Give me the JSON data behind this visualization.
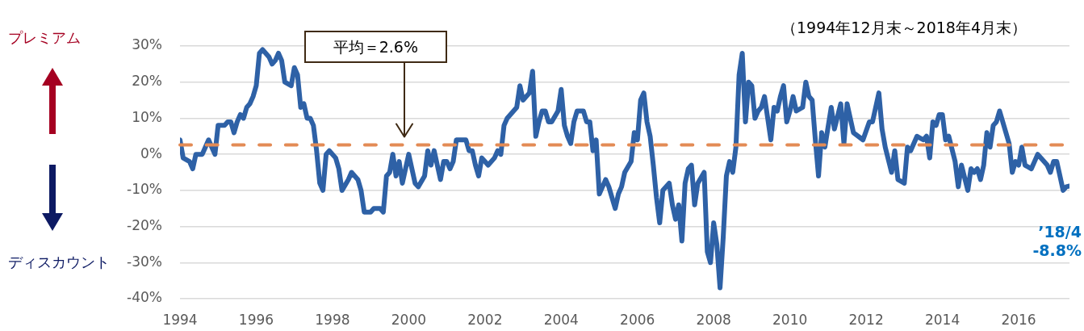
{
  "chart_data": {
    "type": "line",
    "subtitle": "（1994年12月末～2018年4月末）",
    "x": [
      "1994-12",
      "1995-01",
      "1995-03",
      "1995-04",
      "1995-05",
      "1995-07",
      "1995-08",
      "1995-09",
      "1995-10",
      "1995-11",
      "1995-12",
      "1996-02",
      "1996-03",
      "1996-04",
      "1996-05",
      "1996-06",
      "1996-07",
      "1996-08",
      "1996-09",
      "1996-10",
      "1996-11",
      "1996-12",
      "1997-01",
      "1997-02",
      "1997-03",
      "1997-04",
      "1997-05",
      "1997-06",
      "1997-07",
      "1997-08",
      "1997-09",
      "1997-11",
      "1997-12",
      "1998-01",
      "1998-02",
      "1998-03",
      "1998-04",
      "1998-05",
      "1998-06",
      "1998-07",
      "1998-08",
      "1998-09",
      "1998-10",
      "1998-11",
      "1999-01",
      "1999-02",
      "1999-03",
      "1999-05",
      "1999-06",
      "1999-08",
      "1999-09",
      "1999-10",
      "1999-11",
      "1999-12",
      "2000-01",
      "2000-03",
      "2000-04",
      "2000-05",
      "2000-06",
      "2000-07",
      "2000-08",
      "2000-09",
      "2000-10",
      "2000-12",
      "2001-02",
      "2001-03",
      "2001-05",
      "2001-06",
      "2001-07",
      "2001-08",
      "2001-10",
      "2001-11",
      "2001-12",
      "2002-01",
      "2002-02",
      "2002-03",
      "2002-05",
      "2002-06",
      "2002-07",
      "2002-08",
      "2002-09",
      "2002-10",
      "2002-11",
      "2002-12",
      "2003-01",
      "2003-03",
      "2003-04",
      "2003-05",
      "2003-06",
      "2003-07",
      "2003-09",
      "2003-10",
      "2003-11",
      "2003-12",
      "2004-02",
      "2004-03",
      "2004-04",
      "2004-05",
      "2004-06",
      "2004-07",
      "2004-08",
      "2004-09",
      "2004-11",
      "2004-12",
      "2005-01",
      "2005-02",
      "2005-03",
      "2005-04",
      "2005-05",
      "2005-06",
      "2005-07",
      "2005-08",
      "2005-09",
      "2005-10",
      "2005-11",
      "2005-12",
      "2006-01",
      "2006-02",
      "2006-03",
      "2006-04",
      "2006-05",
      "2006-06",
      "2006-07",
      "2006-08",
      "2006-10",
      "2006-11",
      "2006-12",
      "2007-01",
      "2007-02",
      "2007-03",
      "2007-04",
      "2007-05",
      "2007-06",
      "2007-07",
      "2007-08",
      "2007-10",
      "2007-11",
      "2007-12",
      "2008-01",
      "2008-02",
      "2008-03",
      "2008-04",
      "2008-05",
      "2008-06",
      "2008-07",
      "2008-09",
      "2008-10",
      "2008-11",
      "2008-12",
      "2009-01",
      "2009-02",
      "2009-03",
      "2009-04",
      "2009-05",
      "2009-06",
      "2009-07",
      "2009-08",
      "2009-09",
      "2009-10",
      "2009-11",
      "2009-12",
      "2010-01",
      "2010-02",
      "2010-03",
      "2010-04",
      "2010-05",
      "2010-06",
      "2010-07",
      "2010-08",
      "2010-09",
      "2010-10",
      "2010-11",
      "2010-12",
      "2011-01",
      "2011-02",
      "2011-04",
      "2011-05",
      "2011-06",
      "2011-07",
      "2011-08",
      "2011-09",
      "2011-10",
      "2011-11",
      "2012-01",
      "2012-02",
      "2012-04",
      "2012-05",
      "2012-06",
      "2012-08",
      "2012-11",
      "2013-01",
      "2013-02",
      "2013-04",
      "2013-05",
      "2013-06",
      "2013-08",
      "2013-09",
      "2013-10",
      "2013-12",
      "2014-01",
      "2014-02",
      "2014-04",
      "2014-06",
      "2014-07",
      "2014-08",
      "2014-09",
      "2014-10",
      "2014-11",
      "2014-12",
      "2015-01",
      "2015-02",
      "2015-04",
      "2015-05",
      "2015-06",
      "2015-08",
      "2015-09",
      "2015-10",
      "2015-11",
      "2015-12",
      "2016-01",
      "2016-02",
      "2016-03",
      "2016-04",
      "2016-05",
      "2016-06",
      "2016-08",
      "2016-09",
      "2016-10",
      "2016-11",
      "2016-12",
      "2017-01",
      "2017-02",
      "2017-04",
      "2017-05",
      "2017-06",
      "2017-08",
      "2017-09",
      "2017-10",
      "2017-11",
      "2017-12",
      "2018-01",
      "2018-02",
      "2018-03",
      "2018-04"
    ],
    "series": [
      {
        "color": "#2e61a6",
        "values": [
          4,
          -1,
          -2,
          -4,
          0,
          0,
          2,
          4,
          2,
          0,
          8,
          8,
          9,
          9,
          6,
          9,
          11,
          10,
          13,
          14,
          16,
          19,
          28,
          29,
          28,
          27,
          25,
          26,
          28,
          26,
          20,
          19,
          24,
          22,
          13,
          14,
          10,
          10,
          8,
          1,
          -8,
          -10,
          0,
          1,
          -1,
          -4,
          -10,
          -7,
          -5,
          -7,
          -10,
          -16,
          -16,
          -16,
          -15,
          -15,
          -16,
          -6,
          -5,
          0,
          -6,
          -2,
          -8,
          0,
          -8,
          -9,
          -6,
          1,
          -3,
          1,
          -7,
          -2,
          -2,
          -4,
          -2,
          4,
          4,
          4,
          1,
          1,
          -3,
          -6,
          -1,
          -2,
          -3,
          -1,
          1,
          0,
          8,
          10,
          12,
          13,
          19,
          15,
          17,
          23,
          5,
          9,
          12,
          12,
          9,
          9,
          12,
          18,
          8,
          5,
          3,
          9,
          12,
          12,
          12,
          9,
          9,
          1,
          4,
          -11,
          -9,
          -7,
          -9,
          -12,
          -15,
          -11,
          -9,
          -5,
          -2,
          6,
          4,
          15,
          17,
          9,
          5,
          -3,
          -12,
          -19,
          -10,
          -8,
          -14,
          -18,
          -14,
          -24,
          -8,
          -4,
          -3,
          -14,
          -8,
          -5,
          -27,
          -30,
          -19,
          -25,
          -37,
          -23,
          -6,
          -2,
          -5,
          2,
          22,
          28,
          9,
          20,
          19,
          10,
          12,
          13,
          16,
          10,
          4,
          13,
          12,
          16,
          19,
          9,
          12,
          16,
          12,
          13,
          20,
          16,
          15,
          4,
          -6,
          6,
          2,
          13,
          7,
          14,
          3,
          14,
          6,
          4,
          9,
          9,
          17,
          7,
          2,
          -5,
          1,
          -7,
          -8,
          2,
          1,
          5,
          4,
          5,
          -1,
          9,
          8,
          11,
          11,
          4,
          5,
          -2,
          -9,
          -3,
          -10,
          -4,
          -5,
          -4,
          -7,
          -3,
          6,
          2,
          8,
          9,
          12,
          6,
          3,
          -5,
          -2,
          -3,
          2,
          -3,
          -4,
          -2,
          0,
          -2,
          -3,
          -5,
          -2,
          -2,
          -6,
          -10,
          -9,
          -8.8
        ]
      }
    ],
    "xlim": [
      "1994-12",
      "2018-04"
    ],
    "xticks": [
      {
        "value": "1994-12",
        "label": "1994"
      },
      {
        "value": "1996-12",
        "label": "1996"
      },
      {
        "value": "1998-12",
        "label": "1998"
      },
      {
        "value": "2000-12",
        "label": "2000"
      },
      {
        "value": "2002-12",
        "label": "2002"
      },
      {
        "value": "2004-12",
        "label": "2004"
      },
      {
        "value": "2006-12",
        "label": "2006"
      },
      {
        "value": "2008-12",
        "label": "2008"
      },
      {
        "value": "2010-12",
        "label": "2010"
      },
      {
        "value": "2012-12",
        "label": "2012"
      },
      {
        "value": "2014-12",
        "label": "2014"
      },
      {
        "value": "2016-12",
        "label": "2016"
      }
    ],
    "ylim": [
      -40,
      30
    ],
    "yticks": [
      {
        "value": -40,
        "label": "-40%"
      },
      {
        "value": -30,
        "label": "-30%"
      },
      {
        "value": -20,
        "label": "-20%"
      },
      {
        "value": -10,
        "label": "-10%"
      },
      {
        "value": 0,
        "label": "0%"
      },
      {
        "value": 10,
        "label": "10%"
      },
      {
        "value": 20,
        "label": "20%"
      },
      {
        "value": 30,
        "label": "30%"
      }
    ],
    "grid": "y",
    "marker": "none",
    "ref_lines": [
      {
        "axis": "y",
        "value": 2.6,
        "color": "#e38b55",
        "line_style": "dashed"
      }
    ],
    "annotations": [
      "平均＝2.6%",
      "プレミアム",
      "ディスカウント",
      {
        "text": "’18/4\n-8.8%",
        "x": "2018-04",
        "y": -8.8
      }
    ]
  }
}
